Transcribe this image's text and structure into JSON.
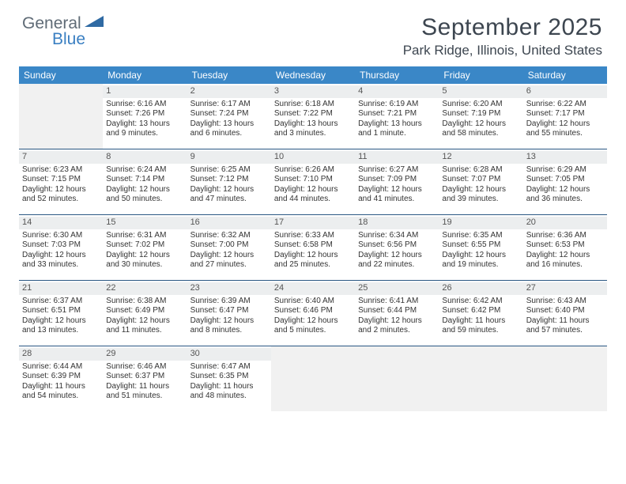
{
  "brand": {
    "word1": "General",
    "word2": "Blue",
    "tri_color": "#2f6aa3"
  },
  "header": {
    "title": "September 2025",
    "subtitle": "Park Ridge, Illinois, United States"
  },
  "colors": {
    "dow_bg": "#3a87c7",
    "dow_fg": "#ffffff",
    "daynum_bg": "#eceeef",
    "empty_bg": "#f1f1f1",
    "week_border": "#2a5783"
  },
  "dow": [
    "Sunday",
    "Monday",
    "Tuesday",
    "Wednesday",
    "Thursday",
    "Friday",
    "Saturday"
  ],
  "weeks": [
    [
      null,
      {
        "n": "1",
        "sr": "6:16 AM",
        "ss": "7:26 PM",
        "dl": "13 hours and 9 minutes."
      },
      {
        "n": "2",
        "sr": "6:17 AM",
        "ss": "7:24 PM",
        "dl": "13 hours and 6 minutes."
      },
      {
        "n": "3",
        "sr": "6:18 AM",
        "ss": "7:22 PM",
        "dl": "13 hours and 3 minutes."
      },
      {
        "n": "4",
        "sr": "6:19 AM",
        "ss": "7:21 PM",
        "dl": "13 hours and 1 minute."
      },
      {
        "n": "5",
        "sr": "6:20 AM",
        "ss": "7:19 PM",
        "dl": "12 hours and 58 minutes."
      },
      {
        "n": "6",
        "sr": "6:22 AM",
        "ss": "7:17 PM",
        "dl": "12 hours and 55 minutes."
      }
    ],
    [
      {
        "n": "7",
        "sr": "6:23 AM",
        "ss": "7:15 PM",
        "dl": "12 hours and 52 minutes."
      },
      {
        "n": "8",
        "sr": "6:24 AM",
        "ss": "7:14 PM",
        "dl": "12 hours and 50 minutes."
      },
      {
        "n": "9",
        "sr": "6:25 AM",
        "ss": "7:12 PM",
        "dl": "12 hours and 47 minutes."
      },
      {
        "n": "10",
        "sr": "6:26 AM",
        "ss": "7:10 PM",
        "dl": "12 hours and 44 minutes."
      },
      {
        "n": "11",
        "sr": "6:27 AM",
        "ss": "7:09 PM",
        "dl": "12 hours and 41 minutes."
      },
      {
        "n": "12",
        "sr": "6:28 AM",
        "ss": "7:07 PM",
        "dl": "12 hours and 39 minutes."
      },
      {
        "n": "13",
        "sr": "6:29 AM",
        "ss": "7:05 PM",
        "dl": "12 hours and 36 minutes."
      }
    ],
    [
      {
        "n": "14",
        "sr": "6:30 AM",
        "ss": "7:03 PM",
        "dl": "12 hours and 33 minutes."
      },
      {
        "n": "15",
        "sr": "6:31 AM",
        "ss": "7:02 PM",
        "dl": "12 hours and 30 minutes."
      },
      {
        "n": "16",
        "sr": "6:32 AM",
        "ss": "7:00 PM",
        "dl": "12 hours and 27 minutes."
      },
      {
        "n": "17",
        "sr": "6:33 AM",
        "ss": "6:58 PM",
        "dl": "12 hours and 25 minutes."
      },
      {
        "n": "18",
        "sr": "6:34 AM",
        "ss": "6:56 PM",
        "dl": "12 hours and 22 minutes."
      },
      {
        "n": "19",
        "sr": "6:35 AM",
        "ss": "6:55 PM",
        "dl": "12 hours and 19 minutes."
      },
      {
        "n": "20",
        "sr": "6:36 AM",
        "ss": "6:53 PM",
        "dl": "12 hours and 16 minutes."
      }
    ],
    [
      {
        "n": "21",
        "sr": "6:37 AM",
        "ss": "6:51 PM",
        "dl": "12 hours and 13 minutes."
      },
      {
        "n": "22",
        "sr": "6:38 AM",
        "ss": "6:49 PM",
        "dl": "12 hours and 11 minutes."
      },
      {
        "n": "23",
        "sr": "6:39 AM",
        "ss": "6:47 PM",
        "dl": "12 hours and 8 minutes."
      },
      {
        "n": "24",
        "sr": "6:40 AM",
        "ss": "6:46 PM",
        "dl": "12 hours and 5 minutes."
      },
      {
        "n": "25",
        "sr": "6:41 AM",
        "ss": "6:44 PM",
        "dl": "12 hours and 2 minutes."
      },
      {
        "n": "26",
        "sr": "6:42 AM",
        "ss": "6:42 PM",
        "dl": "11 hours and 59 minutes."
      },
      {
        "n": "27",
        "sr": "6:43 AM",
        "ss": "6:40 PM",
        "dl": "11 hours and 57 minutes."
      }
    ],
    [
      {
        "n": "28",
        "sr": "6:44 AM",
        "ss": "6:39 PM",
        "dl": "11 hours and 54 minutes."
      },
      {
        "n": "29",
        "sr": "6:46 AM",
        "ss": "6:37 PM",
        "dl": "11 hours and 51 minutes."
      },
      {
        "n": "30",
        "sr": "6:47 AM",
        "ss": "6:35 PM",
        "dl": "11 hours and 48 minutes."
      },
      null,
      null,
      null,
      null
    ]
  ],
  "labels": {
    "sunrise": "Sunrise:",
    "sunset": "Sunset:",
    "daylight": "Daylight:"
  }
}
